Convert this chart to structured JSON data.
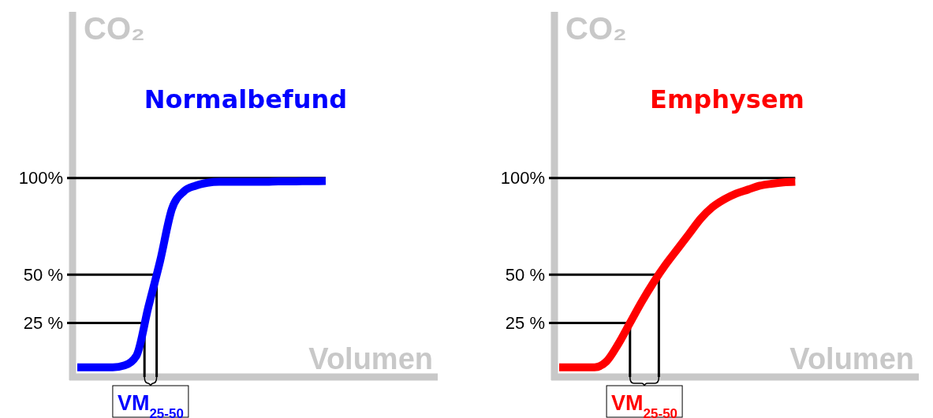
{
  "chart_data": [
    {
      "type": "line",
      "title": "Normalbefund",
      "xlabel": "Volumen",
      "ylabel": "CO₂",
      "categories": [
        null,
        null,
        null,
        null,
        null,
        null,
        null,
        null,
        null,
        null,
        null,
        null,
        null,
        null,
        null,
        null,
        null,
        null,
        null,
        null,
        null,
        null,
        null,
        null,
        null,
        null,
        null,
        null,
        null,
        null,
        null
      ],
      "series": [
        {
          "color": "#0000ff",
          "values": [
            2,
            2,
            2,
            2,
            3,
            8,
            33,
            57,
            84,
            93,
            96,
            97.5,
            98,
            98,
            98,
            98,
            98,
            98.2,
            98.2,
            98.3,
            98.3,
            98.4,
            null,
            null,
            null,
            null,
            null,
            null,
            null,
            null,
            null
          ]
        }
      ],
      "ylim": [
        -3,
        186
      ],
      "yticks": [
        {
          "value": 25,
          "label": "25 %"
        },
        {
          "value": 50,
          "label": "50 %"
        },
        {
          "value": 100,
          "label": "100%"
        }
      ],
      "tick_labels": "y",
      "grid": false,
      "marker": "none",
      "ref_lines": [
        {
          "axis": "y",
          "value": 100,
          "color": "#000000"
        },
        {
          "axis": "y",
          "value": 50,
          "color": "#000000"
        },
        {
          "axis": "y",
          "value": 25,
          "color": "#000000"
        }
      ],
      "annotations": [
        "VM$_{25-50}$"
      ]
    },
    {
      "type": "line",
      "title": "Emphysem",
      "xlabel": "Volumen",
      "ylabel": "CO₂",
      "categories": [
        null,
        null,
        null,
        null,
        null,
        null,
        null,
        null,
        null,
        null,
        null,
        null,
        null,
        null,
        null,
        null,
        null,
        null,
        null,
        null,
        null,
        null,
        null,
        null,
        null,
        null,
        null,
        null,
        null,
        null,
        null
      ],
      "series": [
        {
          "color": "#ff0000",
          "values": [
            2,
            2,
            2,
            2,
            5,
            14,
            25,
            36,
            46,
            55,
            63,
            71,
            79,
            85,
            89,
            92,
            94,
            96,
            97,
            97.7,
            98,
            null,
            null,
            null,
            null,
            null,
            null,
            null,
            null,
            null,
            null
          ]
        }
      ],
      "ylim": [
        -3,
        186
      ],
      "yticks": [
        {
          "value": 25,
          "label": "25 %"
        },
        {
          "value": 50,
          "label": "50 %"
        },
        {
          "value": 100,
          "label": "100%"
        }
      ],
      "tick_labels": "y",
      "grid": false,
      "marker": "none",
      "ref_lines": [
        {
          "axis": "y",
          "value": 100,
          "color": "#000000"
        },
        {
          "axis": "y",
          "value": 50,
          "color": "#000000"
        },
        {
          "axis": "y",
          "value": 25,
          "color": "#000000"
        }
      ],
      "annotations": [
        "VM$_{25-50}$"
      ]
    }
  ]
}
